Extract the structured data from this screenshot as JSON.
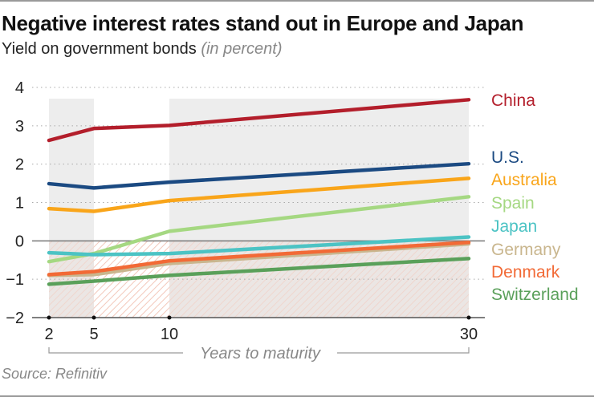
{
  "title": "Negative interest rates stand out in Europe and Japan",
  "subtitle": "Yield on government bonds",
  "subtitle_unit": "(in percent)",
  "source": "Source: Refinitiv",
  "chart_data": {
    "type": "line",
    "title": "Negative interest rates stand out in Europe and Japan",
    "subtitle": "Yield on government bonds (in percent)",
    "xlabel": "Years to maturity",
    "ylabel": "",
    "x": [
      2,
      5,
      10,
      30
    ],
    "x_tick_labels": [
      "2",
      "5",
      "10",
      "30"
    ],
    "ylim": [
      -2,
      4
    ],
    "y_ticks": [
      4,
      3,
      2,
      1,
      0,
      -1,
      -2
    ],
    "y_tick_labels": [
      "4",
      "3",
      "2",
      "1",
      "0",
      "−1",
      "−2"
    ],
    "grid": true,
    "legend": "right",
    "series": [
      {
        "name": "China",
        "color": "#b31e2b",
        "values": [
          2.62,
          2.93,
          3.01,
          3.68
        ]
      },
      {
        "name": "U.S.",
        "color": "#1b4a82",
        "values": [
          1.49,
          1.38,
          1.53,
          2.01
        ]
      },
      {
        "name": "Australia",
        "color": "#f9a51a",
        "values": [
          0.84,
          0.77,
          1.05,
          1.63
        ]
      },
      {
        "name": "Spain",
        "color": "#a5d882",
        "values": [
          -0.54,
          -0.33,
          0.25,
          1.15
        ]
      },
      {
        "name": "Japan",
        "color": "#4cc3c4",
        "values": [
          -0.31,
          -0.36,
          -0.33,
          0.1
        ]
      },
      {
        "name": "Germany",
        "color": "#c9b68e",
        "values": [
          -0.9,
          -0.88,
          -0.59,
          -0.08
        ]
      },
      {
        "name": "Denmark",
        "color": "#f26a36",
        "values": [
          -0.88,
          -0.8,
          -0.52,
          -0.04
        ]
      },
      {
        "name": "Switzerland",
        "color": "#5aa05a",
        "values": [
          -1.13,
          -1.05,
          -0.9,
          -0.46
        ]
      }
    ]
  }
}
